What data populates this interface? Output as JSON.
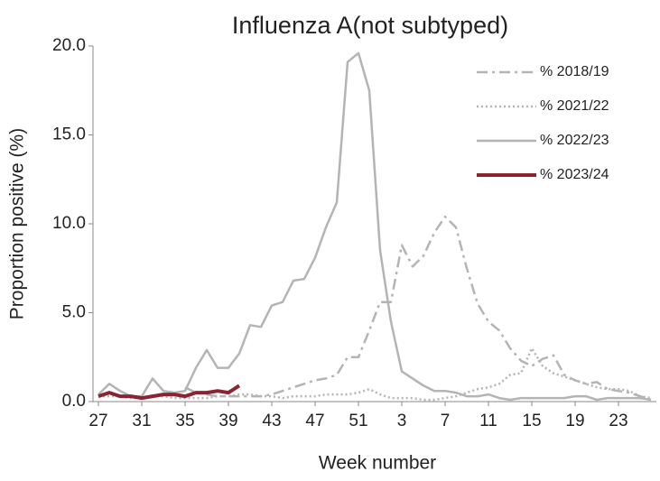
{
  "chart_data": {
    "type": "line",
    "title": "Influenza A(not subtyped)",
    "x_label": "Week number",
    "y_label": "Proportion positive (%)",
    "categories": [
      "27",
      null,
      null,
      null,
      "31",
      null,
      null,
      null,
      "35",
      null,
      null,
      null,
      "39",
      null,
      null,
      null,
      "43",
      null,
      null,
      null,
      "47",
      null,
      null,
      null,
      "51",
      null,
      null,
      null,
      "3",
      null,
      null,
      null,
      "7",
      null,
      null,
      null,
      "11",
      null,
      null,
      null,
      "15",
      null,
      null,
      null,
      "19",
      null,
      null,
      null,
      "23",
      null,
      null,
      null
    ],
    "ylim": [
      0,
      20
    ],
    "yticks": [
      {
        "value": 0,
        "label": "0.0"
      },
      {
        "value": 5,
        "label": "5.0"
      },
      {
        "value": 10,
        "label": "10.0"
      },
      {
        "value": 15,
        "label": "15.0"
      },
      {
        "value": 20,
        "label": "20.0"
      }
    ],
    "legend": "upper right",
    "series": [
      {
        "name": "% 2018/19",
        "color": "#b4b4b4",
        "style": "dashdot",
        "width": 2.5,
        "values": [
          null,
          null,
          null,
          null,
          null,
          null,
          null,
          null,
          0.8,
          0.5,
          0.4,
          0.3,
          0.3,
          0.3,
          0.3,
          0.3,
          0.4,
          0.6,
          0.8,
          1.0,
          1.2,
          1.3,
          1.5,
          2.5,
          2.5,
          4.0,
          5.6,
          5.6,
          8.8,
          7.6,
          8.2,
          9.5,
          10.4,
          9.8,
          7.5,
          5.5,
          4.5,
          4.0,
          3.0,
          2.3,
          2.0,
          2.4,
          2.6,
          1.5,
          1.2,
          1.0,
          1.1,
          0.7,
          0.6,
          0.5,
          0.3,
          0.1
        ]
      },
      {
        "name": "% 2021/22",
        "color": "#b4b4b4",
        "style": "dotted",
        "width": 2.5,
        "values": [
          0.3,
          0.3,
          0.3,
          0.2,
          0.2,
          0.3,
          0.3,
          0.2,
          0.2,
          0.2,
          0.2,
          0.3,
          0.3,
          0.4,
          0.4,
          0.3,
          0.3,
          0.2,
          0.3,
          0.3,
          0.3,
          0.4,
          0.4,
          0.4,
          0.5,
          0.7,
          0.4,
          0.2,
          0.2,
          0.2,
          0.1,
          0.1,
          0.2,
          0.3,
          0.5,
          0.7,
          0.8,
          1.0,
          1.5,
          1.6,
          3.0,
          2.0,
          1.6,
          1.4,
          1.2,
          1.0,
          0.8,
          0.7,
          0.7,
          0.6,
          0.3,
          0.2
        ]
      },
      {
        "name": "% 2022/23",
        "color": "#b4b4b4",
        "style": "solid",
        "width": 2.5,
        "values": [
          0.4,
          1.0,
          0.6,
          0.3,
          0.3,
          1.3,
          0.6,
          0.5,
          0.6,
          1.9,
          2.9,
          1.9,
          1.9,
          2.7,
          4.3,
          4.2,
          5.4,
          5.6,
          6.8,
          6.9,
          8.1,
          9.8,
          11.2,
          19.1,
          19.6,
          17.5,
          8.5,
          4.5,
          1.7,
          1.3,
          0.9,
          0.6,
          0.6,
          0.5,
          0.3,
          0.3,
          0.4,
          0.2,
          0.1,
          0.2,
          0.2,
          0.2,
          0.2,
          0.2,
          0.3,
          0.3,
          0.1,
          0.2,
          0.2,
          0.2,
          0.2,
          0.1
        ]
      },
      {
        "name": "% 2023/24",
        "color": "#8b2331",
        "style": "solid",
        "width": 4,
        "values": [
          0.3,
          0.5,
          0.3,
          0.3,
          0.2,
          0.3,
          0.4,
          0.4,
          0.3,
          0.5,
          0.5,
          0.6,
          0.5,
          0.9,
          null,
          null,
          null,
          null,
          null,
          null,
          null,
          null,
          null,
          null,
          null,
          null,
          null,
          null,
          null,
          null,
          null,
          null,
          null,
          null,
          null,
          null,
          null,
          null,
          null,
          null,
          null,
          null,
          null,
          null,
          null,
          null,
          null,
          null,
          null,
          null,
          null,
          null
        ]
      }
    ]
  }
}
